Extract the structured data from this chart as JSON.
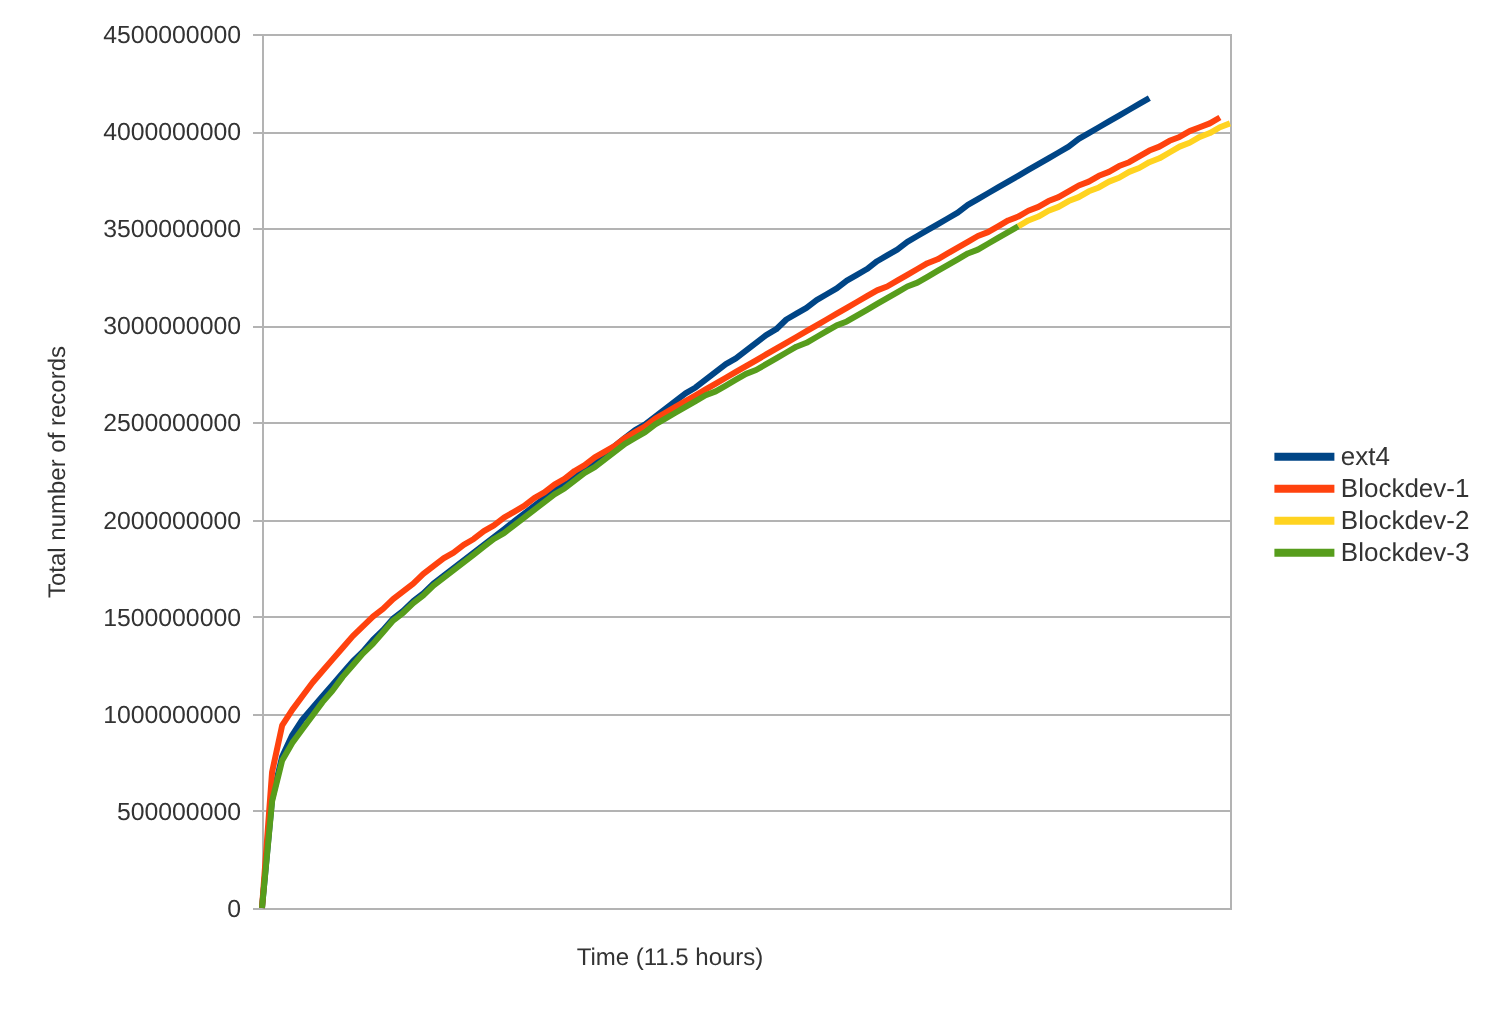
{
  "chart_data": {
    "type": "line",
    "xlabel": "Time (11.5 hours)",
    "ylabel": "Total number of records",
    "categories": [
      null,
      null,
      null,
      null,
      null,
      null,
      null,
      null,
      null,
      null,
      null,
      null,
      null,
      null,
      null,
      null,
      null,
      null,
      null,
      null,
      null,
      null,
      null,
      null,
      null,
      null,
      null,
      null,
      null,
      null,
      null,
      null,
      null,
      null,
      null,
      null,
      null,
      null,
      null,
      null,
      null,
      null,
      null,
      null,
      null,
      null,
      null,
      null,
      null,
      null,
      null,
      null,
      null,
      null,
      null,
      null,
      null,
      null,
      null,
      null,
      null,
      null,
      null,
      null,
      null,
      null,
      null,
      null,
      null,
      null,
      null,
      null,
      null,
      null,
      null,
      null,
      null,
      null,
      null,
      null,
      null,
      null,
      null,
      null,
      null,
      null,
      null,
      null,
      null,
      null,
      null,
      null,
      null,
      null,
      null,
      null,
      null
    ],
    "series": [
      {
        "name": "ext4",
        "color": "#004586",
        "values": [
          0,
          560000000,
          780000000,
          890000000,
          970000000,
          1030000000,
          1090000000,
          1150000000,
          1210000000,
          1270000000,
          1320000000,
          1380000000,
          1430000000,
          1490000000,
          1530000000,
          1580000000,
          1620000000,
          1670000000,
          1710000000,
          1750000000,
          1790000000,
          1830000000,
          1870000000,
          1910000000,
          1950000000,
          1990000000,
          2030000000,
          2070000000,
          2110000000,
          2150000000,
          2190000000,
          2230000000,
          2270000000,
          2300000000,
          2340000000,
          2380000000,
          2420000000,
          2460000000,
          2490000000,
          2530000000,
          2570000000,
          2610000000,
          2650000000,
          2680000000,
          2720000000,
          2760000000,
          2800000000,
          2830000000,
          2870000000,
          2910000000,
          2950000000,
          2980000000,
          3030000000,
          3060000000,
          3090000000,
          3130000000,
          3160000000,
          3190000000,
          3230000000,
          3260000000,
          3290000000,
          3330000000,
          3360000000,
          3390000000,
          3430000000,
          3460000000,
          3490000000,
          3520000000,
          3550000000,
          3580000000,
          3620000000,
          3650000000,
          3680000000,
          3710000000,
          3740000000,
          3770000000,
          3800000000,
          3830000000,
          3860000000,
          3890000000,
          3920000000,
          3960000000,
          3990000000,
          4020000000,
          4050000000,
          4080000000,
          4110000000,
          4140000000,
          4170000000,
          null,
          null,
          null,
          null,
          null,
          null,
          null,
          null
        ]
      },
      {
        "name": "Blockdev-1",
        "color": "#ff420e",
        "values": [
          0,
          700000000,
          940000000,
          1020000000,
          1090000000,
          1160000000,
          1220000000,
          1280000000,
          1340000000,
          1400000000,
          1450000000,
          1500000000,
          1540000000,
          1590000000,
          1630000000,
          1670000000,
          1720000000,
          1760000000,
          1800000000,
          1830000000,
          1870000000,
          1900000000,
          1940000000,
          1970000000,
          2010000000,
          2040000000,
          2070000000,
          2110000000,
          2140000000,
          2180000000,
          2210000000,
          2250000000,
          2280000000,
          2320000000,
          2350000000,
          2380000000,
          2420000000,
          2450000000,
          2480000000,
          2520000000,
          2550000000,
          2580000000,
          2610000000,
          2640000000,
          2670000000,
          2700000000,
          2730000000,
          2760000000,
          2790000000,
          2820000000,
          2850000000,
          2880000000,
          2910000000,
          2940000000,
          2970000000,
          3000000000,
          3030000000,
          3060000000,
          3090000000,
          3120000000,
          3150000000,
          3180000000,
          3200000000,
          3230000000,
          3260000000,
          3290000000,
          3320000000,
          3340000000,
          3370000000,
          3400000000,
          3430000000,
          3460000000,
          3480000000,
          3510000000,
          3540000000,
          3560000000,
          3590000000,
          3610000000,
          3640000000,
          3660000000,
          3690000000,
          3720000000,
          3740000000,
          3770000000,
          3790000000,
          3820000000,
          3840000000,
          3870000000,
          3900000000,
          3920000000,
          3950000000,
          3970000000,
          4000000000,
          4020000000,
          4040000000,
          4070000000,
          null
        ]
      },
      {
        "name": "Blockdev-2",
        "color": "#ffd320",
        "values": [
          null,
          null,
          null,
          null,
          null,
          null,
          null,
          null,
          null,
          null,
          null,
          null,
          null,
          null,
          null,
          null,
          null,
          null,
          null,
          null,
          null,
          null,
          null,
          null,
          null,
          null,
          null,
          null,
          null,
          null,
          null,
          null,
          null,
          null,
          null,
          null,
          null,
          null,
          null,
          null,
          null,
          null,
          null,
          null,
          null,
          null,
          null,
          null,
          null,
          null,
          null,
          null,
          null,
          null,
          null,
          null,
          null,
          null,
          null,
          null,
          null,
          null,
          null,
          null,
          null,
          null,
          null,
          null,
          null,
          null,
          null,
          null,
          null,
          null,
          null,
          3510000000,
          3540000000,
          3560000000,
          3590000000,
          3610000000,
          3640000000,
          3660000000,
          3690000000,
          3710000000,
          3740000000,
          3760000000,
          3790000000,
          3810000000,
          3840000000,
          3860000000,
          3890000000,
          3920000000,
          3940000000,
          3970000000,
          3990000000,
          4020000000,
          4040000000
        ]
      },
      {
        "name": "Blockdev-3",
        "color": "#579d1c",
        "values": [
          0,
          550000000,
          760000000,
          850000000,
          920000000,
          990000000,
          1060000000,
          1120000000,
          1190000000,
          1250000000,
          1310000000,
          1360000000,
          1420000000,
          1480000000,
          1520000000,
          1570000000,
          1610000000,
          1660000000,
          1700000000,
          1740000000,
          1780000000,
          1820000000,
          1860000000,
          1900000000,
          1930000000,
          1970000000,
          2010000000,
          2050000000,
          2090000000,
          2130000000,
          2160000000,
          2200000000,
          2240000000,
          2270000000,
          2310000000,
          2350000000,
          2390000000,
          2420000000,
          2450000000,
          2490000000,
          2520000000,
          2550000000,
          2580000000,
          2610000000,
          2640000000,
          2660000000,
          2690000000,
          2720000000,
          2750000000,
          2770000000,
          2800000000,
          2830000000,
          2860000000,
          2890000000,
          2910000000,
          2940000000,
          2970000000,
          3000000000,
          3020000000,
          3050000000,
          3080000000,
          3110000000,
          3140000000,
          3170000000,
          3200000000,
          3220000000,
          3250000000,
          3280000000,
          3310000000,
          3340000000,
          3370000000,
          3390000000,
          3420000000,
          3450000000,
          3480000000,
          3510000000,
          null,
          null,
          null,
          null,
          null,
          null,
          null,
          null,
          null,
          null,
          null,
          null,
          null,
          null,
          null,
          null,
          null,
          null,
          null,
          null,
          null
        ]
      }
    ],
    "ylim": [
      0,
      4500000000
    ],
    "yticks": [
      0,
      500000000,
      1000000000,
      1500000000,
      2000000000,
      2500000000,
      3000000000,
      3500000000,
      4000000000,
      4500000000
    ],
    "grid": "y",
    "legend": "right",
    "tick_labels": "y"
  }
}
